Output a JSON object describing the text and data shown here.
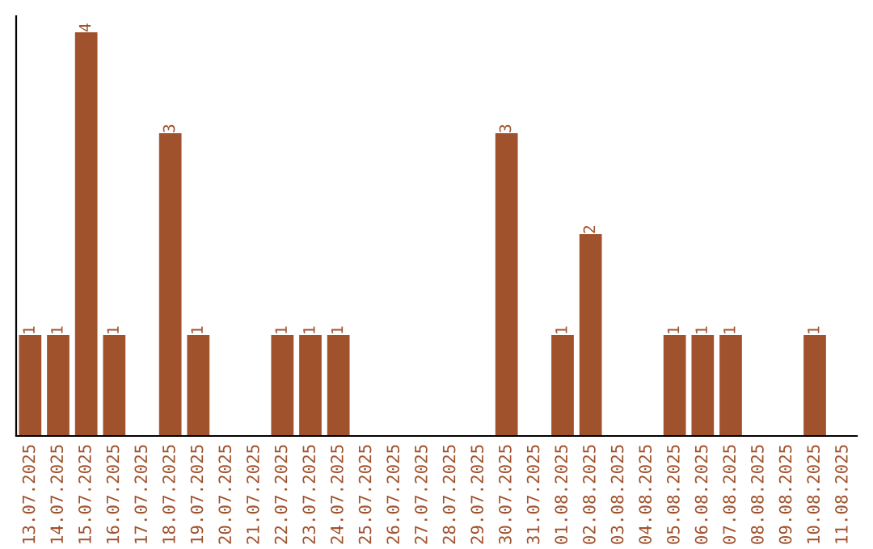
{
  "chart_data": {
    "type": "bar",
    "categories": [
      "13.07.2025",
      "14.07.2025",
      "15.07.2025",
      "16.07.2025",
      "17.07.2025",
      "18.07.2025",
      "19.07.2025",
      "20.07.2025",
      "21.07.2025",
      "22.07.2025",
      "23.07.2025",
      "24.07.2025",
      "25.07.2025",
      "26.07.2025",
      "27.07.2025",
      "28.07.2025",
      "29.07.2025",
      "30.07.2025",
      "31.07.2025",
      "01.08.2025",
      "02.08.2025",
      "03.08.2025",
      "04.08.2025",
      "05.08.2025",
      "06.08.2025",
      "07.08.2025",
      "08.08.2025",
      "09.08.2025",
      "10.08.2025",
      "11.08.2025"
    ],
    "values": [
      1,
      1,
      4,
      1,
      0,
      3,
      1,
      0,
      0,
      1,
      1,
      1,
      0,
      0,
      0,
      0,
      0,
      3,
      0,
      1,
      2,
      0,
      0,
      1,
      1,
      1,
      0,
      0,
      1,
      0
    ],
    "value_labels": [
      "1",
      "1",
      "4",
      "1",
      null,
      "3",
      "1",
      null,
      null,
      "1",
      "1",
      "1",
      null,
      null,
      null,
      null,
      null,
      "3",
      null,
      "1",
      "2",
      null,
      null,
      "1",
      "1",
      "1",
      null,
      null,
      "1",
      null
    ],
    "color": "#a0522d",
    "ylim": [
      0,
      4.16
    ],
    "tick_labels": "x",
    "grid": false,
    "legend": false
  }
}
